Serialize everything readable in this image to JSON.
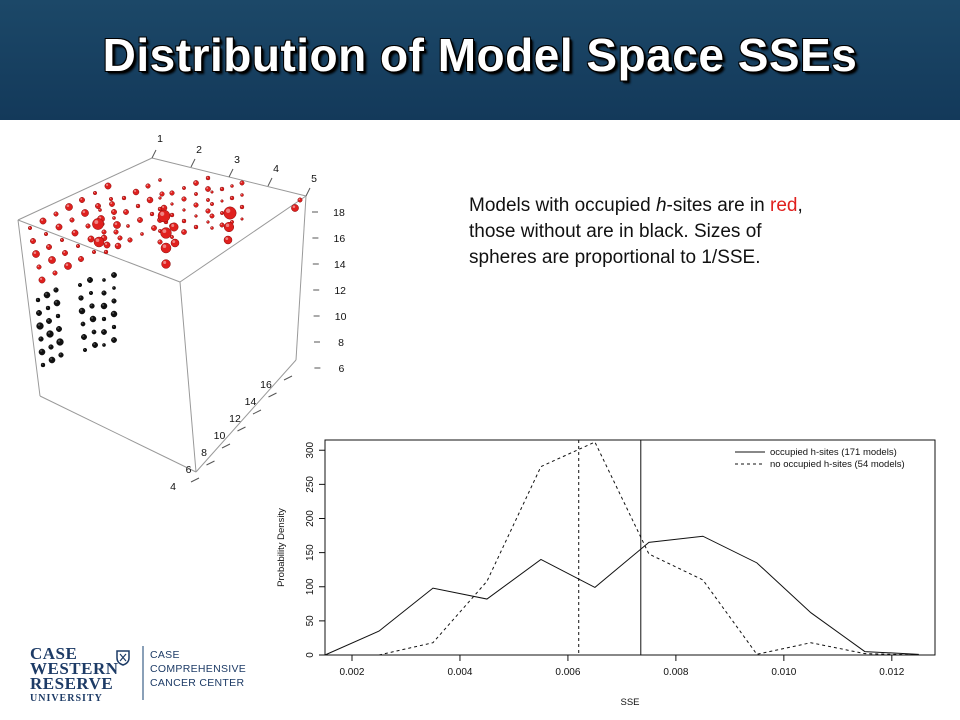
{
  "slide": {
    "title": "Distribution of Model Space SSEs",
    "description": {
      "part1": "Models with occupied ",
      "h": "h",
      "part2": "-sites are in ",
      "red_word": "red",
      "part3": ", those without are in black. Sizes of spheres are proportional to 1/SSE."
    }
  },
  "logo": {
    "line1": "CASE",
    "line2": "WESTERN",
    "line3": "RESERVE",
    "line4": "UNIVERSITY",
    "center1": "CASE",
    "center2": "COMPREHENSIVE",
    "center3": "CANCER CENTER"
  },
  "colors": {
    "header": "#16405f",
    "red_sphere": "#e0201e",
    "black_sphere": "#111111"
  },
  "plot3d": {
    "axis_x_ticks": [
      "1",
      "2",
      "3",
      "4",
      "5"
    ],
    "axis_z_ticks": [
      "18",
      "16",
      "14",
      "12",
      "10",
      "8",
      "6"
    ],
    "axis_y_ticks": [
      "16",
      "14",
      "12",
      "10",
      "8",
      "6",
      "4"
    ]
  },
  "chart_data": {
    "type": "line",
    "title": "",
    "xlabel": "SSE",
    "ylabel": "Probability Density",
    "xlim": [
      0.0015,
      0.0128
    ],
    "ylim": [
      0,
      315
    ],
    "x_ticks": [
      "0.002",
      "0.004",
      "0.006",
      "0.008",
      "0.010",
      "0.012"
    ],
    "x_tick_values": [
      0.002,
      0.004,
      0.006,
      0.008,
      0.01,
      0.012
    ],
    "y_ticks": [
      "0",
      "50",
      "100",
      "150",
      "200",
      "250",
      "300"
    ],
    "y_tick_values": [
      0,
      50,
      100,
      150,
      200,
      250,
      300
    ],
    "legend_position": "top-right",
    "series": [
      {
        "name": "occupied h-sites (171 models)",
        "style": "solid",
        "x": [
          0.0015,
          0.0025,
          0.0035,
          0.0045,
          0.0055,
          0.0065,
          0.0075,
          0.0085,
          0.0095,
          0.0105,
          0.0115,
          0.0125
        ],
        "y": [
          0,
          35,
          98,
          82,
          140,
          99,
          165,
          174,
          135,
          62,
          5,
          1
        ]
      },
      {
        "name": "no occupied h-sites (54 models)",
        "style": "dashed",
        "x": [
          0.0015,
          0.0025,
          0.0035,
          0.0045,
          0.0055,
          0.0065,
          0.0075,
          0.0085,
          0.0095,
          0.0105,
          0.0115,
          0.0125
        ],
        "y": [
          0,
          0,
          18,
          108,
          276,
          312,
          148,
          110,
          1,
          18,
          2,
          0
        ]
      }
    ],
    "vlines": [
      {
        "x": 0.0062,
        "style": "dashed"
      },
      {
        "x": 0.00735,
        "style": "solid"
      }
    ]
  }
}
